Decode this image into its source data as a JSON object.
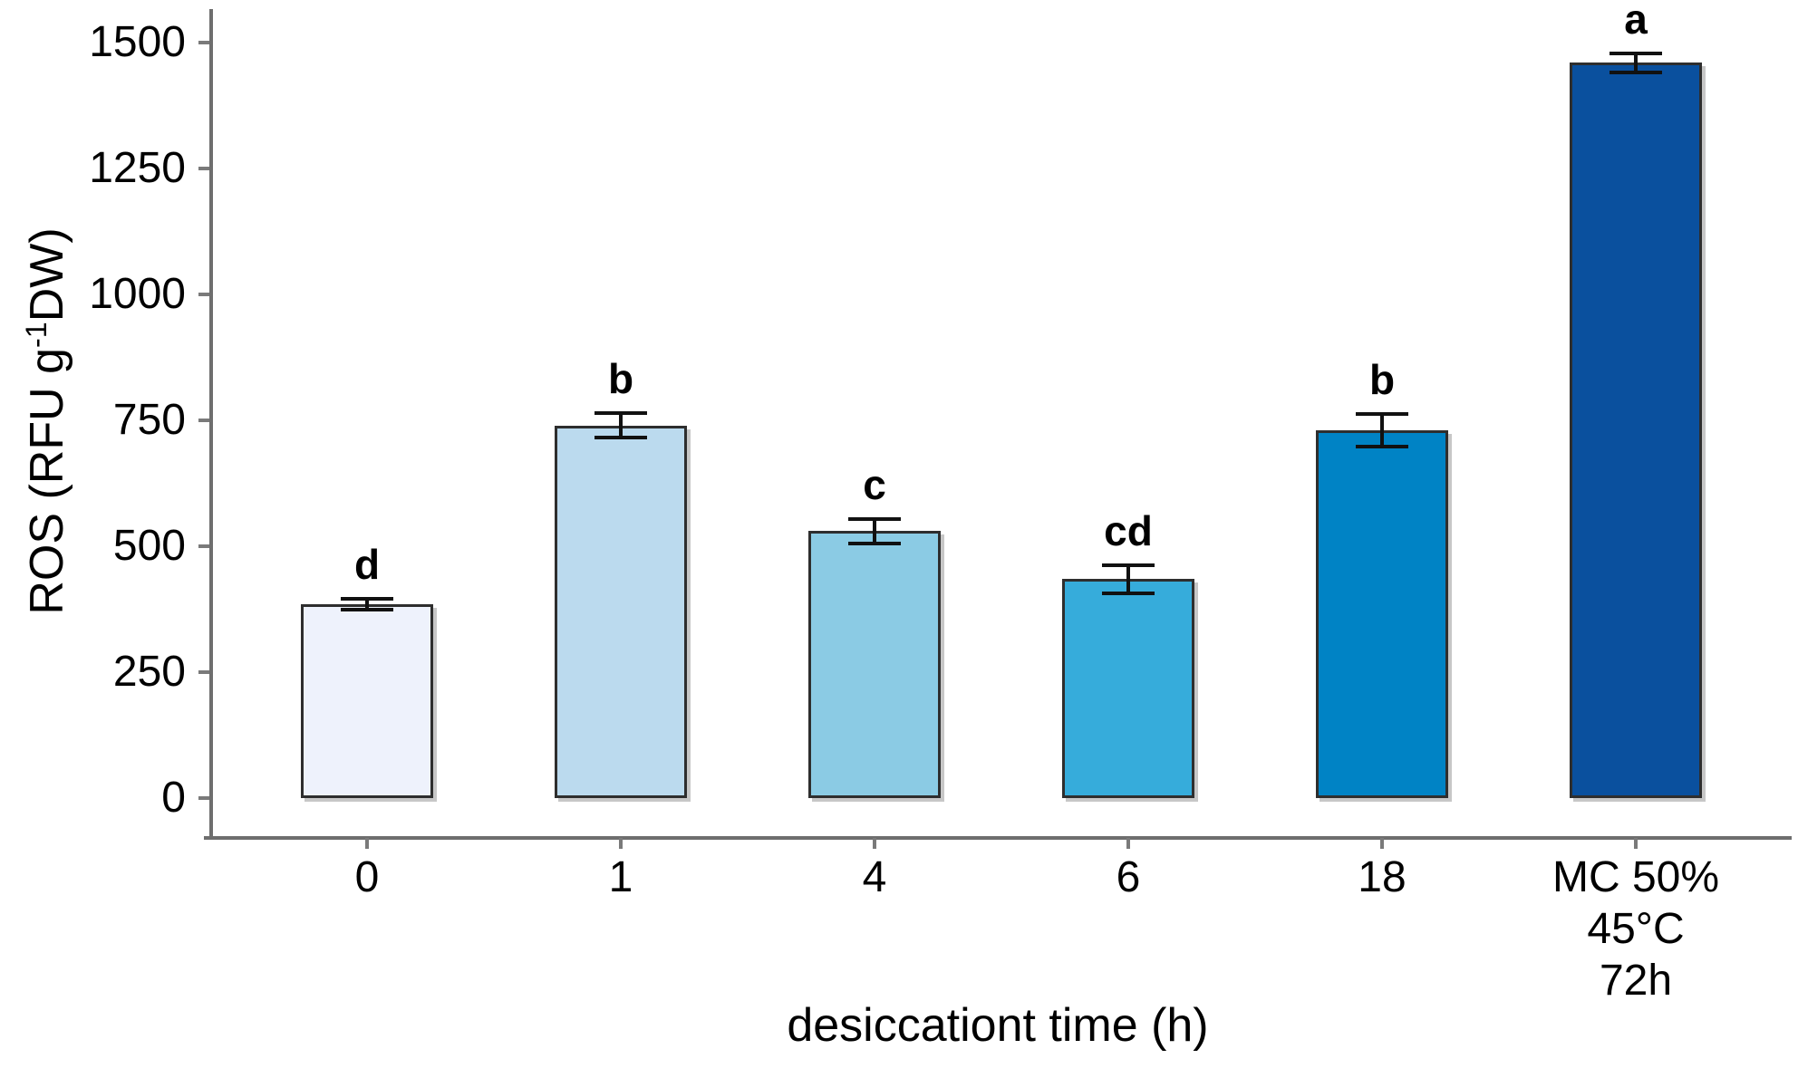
{
  "figure": {
    "x_axis_title": "desiccationt time (h)",
    "y_axis_title": {
      "prefix": "ROS (RFU g",
      "superscript": "-1",
      "suffix": "DW)"
    }
  },
  "chart_data": {
    "type": "bar",
    "title": "",
    "xlabel": "desiccationt time (h)",
    "ylabel": "ROS (RFU g-1 DW)",
    "ylim": [
      0,
      1500
    ],
    "yticks": [
      "0",
      "250",
      "500",
      "750",
      "1000",
      "1250",
      "1500"
    ],
    "grid": false,
    "legend": "none",
    "categories": [
      "0",
      "1",
      "4",
      "6",
      "18",
      "MC 50%\n45°C\n72h"
    ],
    "values": [
      385,
      740,
      530,
      435,
      730,
      1460
    ],
    "errors": [
      10,
      25,
      24,
      28,
      32,
      19
    ],
    "sig_letters": [
      "d",
      "b",
      "c",
      "cd",
      "b",
      "a"
    ],
    "bar_colors": [
      "#eef2fc",
      "#bbdaee",
      "#8bcbe4",
      "#36acdb",
      "#0083c5",
      "#0a509e"
    ]
  },
  "style": {
    "axis_color": "#6e6e6e",
    "bar_border_color": "#2e2e2e",
    "error_bar_color": "#111111",
    "text_color": "#000000"
  }
}
